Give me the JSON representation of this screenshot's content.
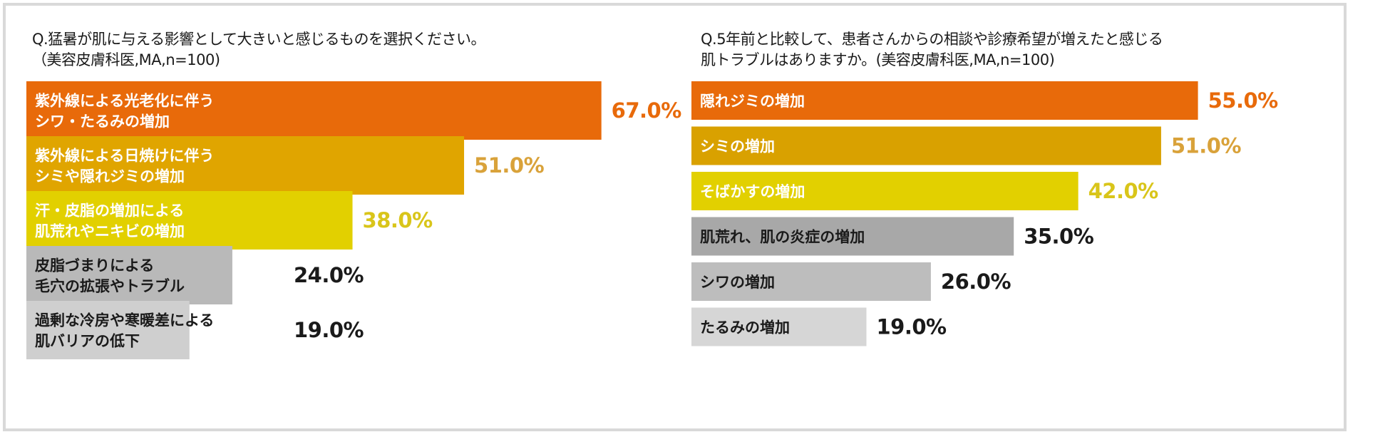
{
  "chart_data": [
    {
      "type": "bar",
      "orientation": "horizontal",
      "title": [
        "Q.猛暑が肌に与える影響として大きいと感じるものを選択ください。",
        "（美容皮膚科医,MA,n=100)"
      ],
      "categories": [
        [
          "紫外線による光老化に伴う",
          "シワ・たるみの増加"
        ],
        [
          "紫外線による日焼けに伴う",
          "シミや隠れジミの増加"
        ],
        [
          "汗・皮脂の増加による",
          "肌荒れやニキビの増加"
        ],
        [
          "皮脂づまりによる",
          "毛穴の拡張やトラブル"
        ],
        [
          "過剰な冷房や寒暖差による",
          "肌バリアの低下"
        ]
      ],
      "values": [
        67.0,
        51.0,
        38.0,
        24.0,
        19.0
      ],
      "value_labels": [
        "67.0%",
        "51.0%",
        "38.0%",
        "24.0%",
        "19.0%"
      ],
      "bar_colors": [
        "#e86a0a",
        "#e0a500",
        "#e2d000",
        "#b9b9b9",
        "#cfcfcf"
      ],
      "label_colors": [
        "#ffffff",
        "#ffffff",
        "#ffffff",
        "#1a1a1a",
        "#1a1a1a"
      ],
      "value_colors": [
        "#e86a0a",
        "#d9a23a",
        "#d9c51a",
        "#1a1a1a",
        "#1a1a1a"
      ],
      "xlim": [
        0,
        100
      ],
      "grid": false
    },
    {
      "type": "bar",
      "orientation": "horizontal",
      "title": [
        "Q.5年前と比較して、患者さんからの相談や診療希望が増えたと感じる",
        "肌トラブルはありますか。(美容皮膚科医,MA,n=100)"
      ],
      "categories": [
        [
          "隠れジミの増加"
        ],
        [
          "シミの増加"
        ],
        [
          "そばかすの増加"
        ],
        [
          "肌荒れ、肌の炎症の増加"
        ],
        [
          "シワの増加"
        ],
        [
          "たるみの増加"
        ]
      ],
      "values": [
        55.0,
        51.0,
        42.0,
        35.0,
        26.0,
        19.0
      ],
      "value_labels": [
        "55.0%",
        "51.0%",
        "42.0%",
        "35.0%",
        "26.0%",
        "19.0%"
      ],
      "bar_colors": [
        "#e86a0a",
        "#d9a100",
        "#e2d000",
        "#a8a8a8",
        "#bdbdbd",
        "#d6d6d6"
      ],
      "label_colors": [
        "#ffffff",
        "#ffffff",
        "#ffffff",
        "#1a1a1a",
        "#1a1a1a",
        "#1a1a1a"
      ],
      "value_colors": [
        "#e86a0a",
        "#d9a23a",
        "#d9c51a",
        "#1a1a1a",
        "#1a1a1a",
        "#1a1a1a"
      ],
      "xlim": [
        0,
        100
      ],
      "grid": false
    }
  ]
}
